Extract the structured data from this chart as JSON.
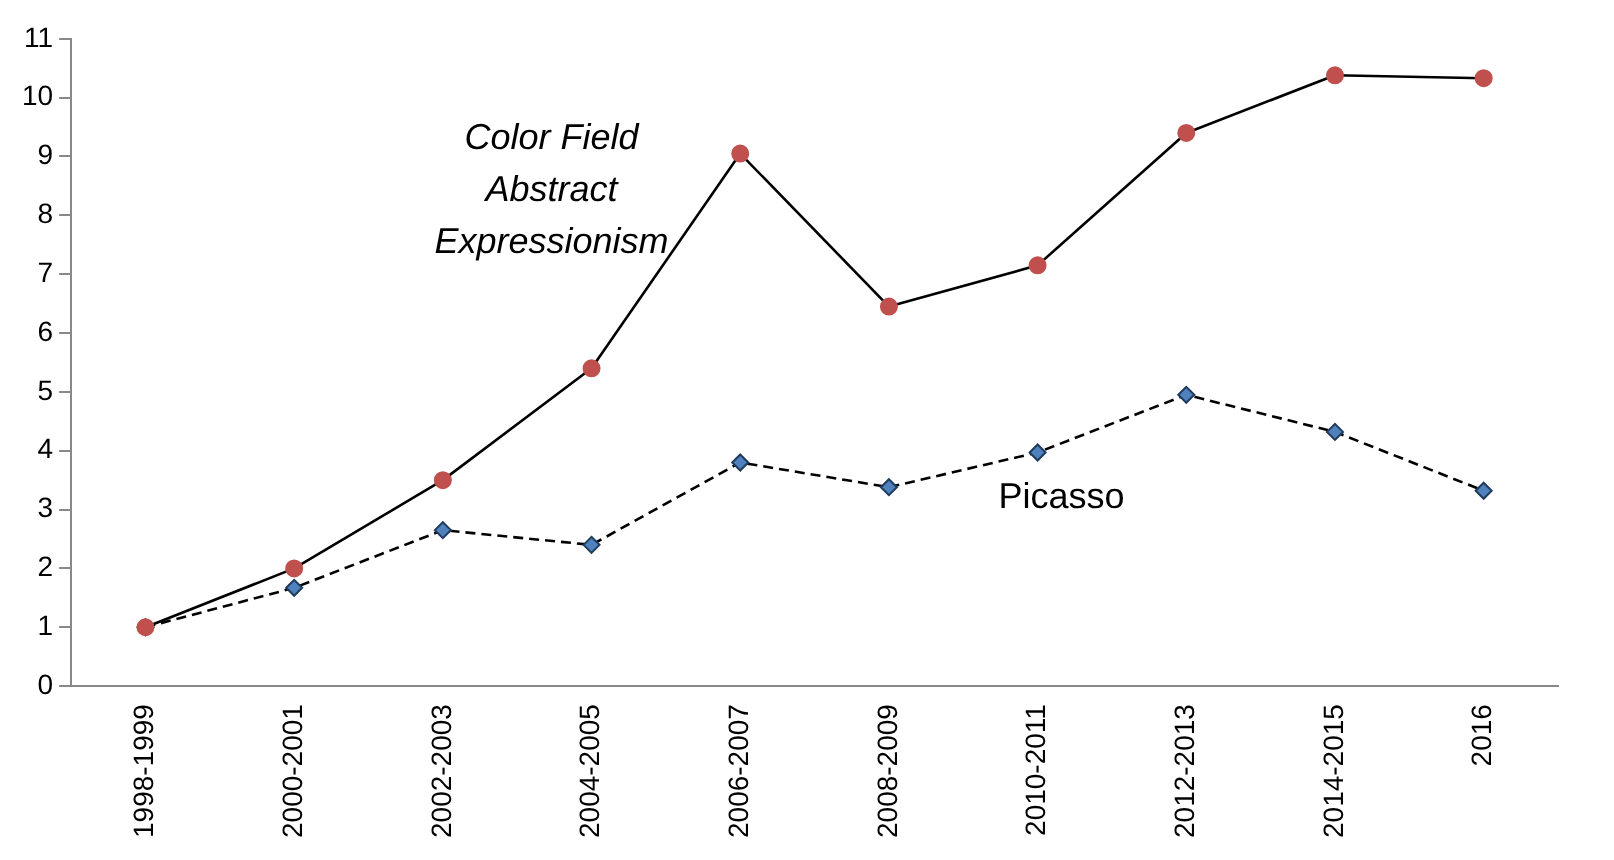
{
  "chart_data": {
    "type": "line",
    "categories": [
      "1998-1999",
      "2000-2001",
      "2002-2003",
      "2004-2005",
      "2006-2007",
      "2008-2009",
      "2010-2011",
      "2012-2013",
      "2014-2015",
      "2016"
    ],
    "series": [
      {
        "name": "Color Field Abstract Expressionism",
        "color": "#c0504d",
        "marker": "circle",
        "line_style": "solid",
        "values": [
          1.0,
          2.0,
          3.5,
          5.4,
          9.05,
          6.45,
          7.15,
          9.4,
          10.38,
          10.33
        ]
      },
      {
        "name": "Picasso",
        "color": "#4f81bd",
        "marker": "diamond",
        "line_style": "dashed",
        "values": [
          1.0,
          1.67,
          2.65,
          2.4,
          3.8,
          3.38,
          3.97,
          4.95,
          4.32,
          3.32
        ]
      }
    ],
    "ylim": [
      0,
      11
    ],
    "yticks": [
      0,
      1,
      2,
      3,
      4,
      5,
      6,
      7,
      8,
      9,
      10,
      11
    ],
    "grid": false,
    "legend": false
  }
}
